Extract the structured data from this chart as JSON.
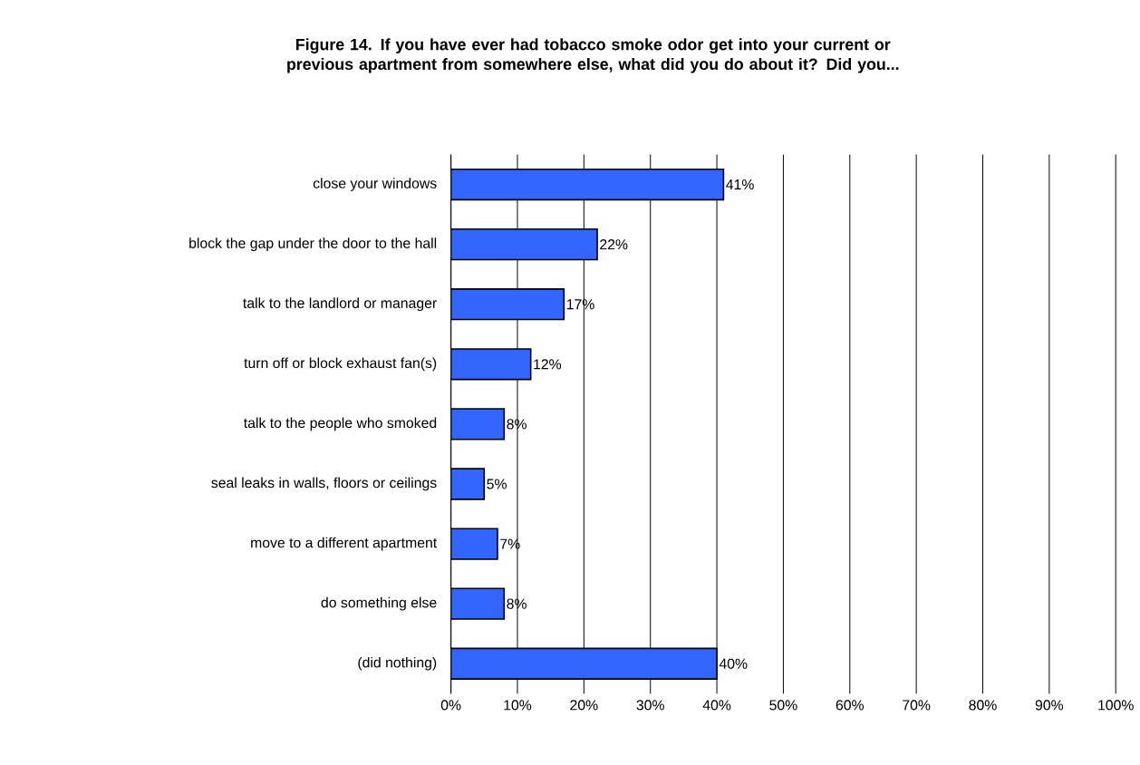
{
  "chart_data": {
    "type": "bar",
    "orientation": "horizontal",
    "title": "Figure 14.  If you have ever had tobacco smoke odor get into your current or previous apartment from somewhere else, what did you do about it?  Did you...",
    "categories": [
      "close your windows",
      "block the gap under the door to the hall",
      "talk to the landlord or manager",
      "turn off or block exhaust fan(s)",
      "talk to the people who smoked",
      "seal leaks in walls, floors or ceilings",
      "move to a different apartment",
      "do something else",
      "(did nothing)"
    ],
    "values": [
      41,
      22,
      17,
      12,
      8,
      5,
      7,
      8,
      40
    ],
    "value_labels": [
      "41%",
      "22%",
      "17%",
      "12%",
      "8%",
      "5%",
      "7%",
      "8%",
      "40%"
    ],
    "color": "#3366ff",
    "xlim": [
      0,
      100
    ],
    "xticks": [
      {
        "value": 0,
        "label": "0%"
      },
      {
        "value": 10,
        "label": "10%"
      },
      {
        "value": 20,
        "label": "20%"
      },
      {
        "value": 30,
        "label": "30%"
      },
      {
        "value": 40,
        "label": "40%"
      },
      {
        "value": 50,
        "label": "50%"
      },
      {
        "value": 60,
        "label": "60%"
      },
      {
        "value": 70,
        "label": "70%"
      },
      {
        "value": 80,
        "label": "80%"
      },
      {
        "value": 90,
        "label": "90%"
      },
      {
        "value": 100,
        "label": "100%"
      }
    ],
    "grid": "x"
  }
}
